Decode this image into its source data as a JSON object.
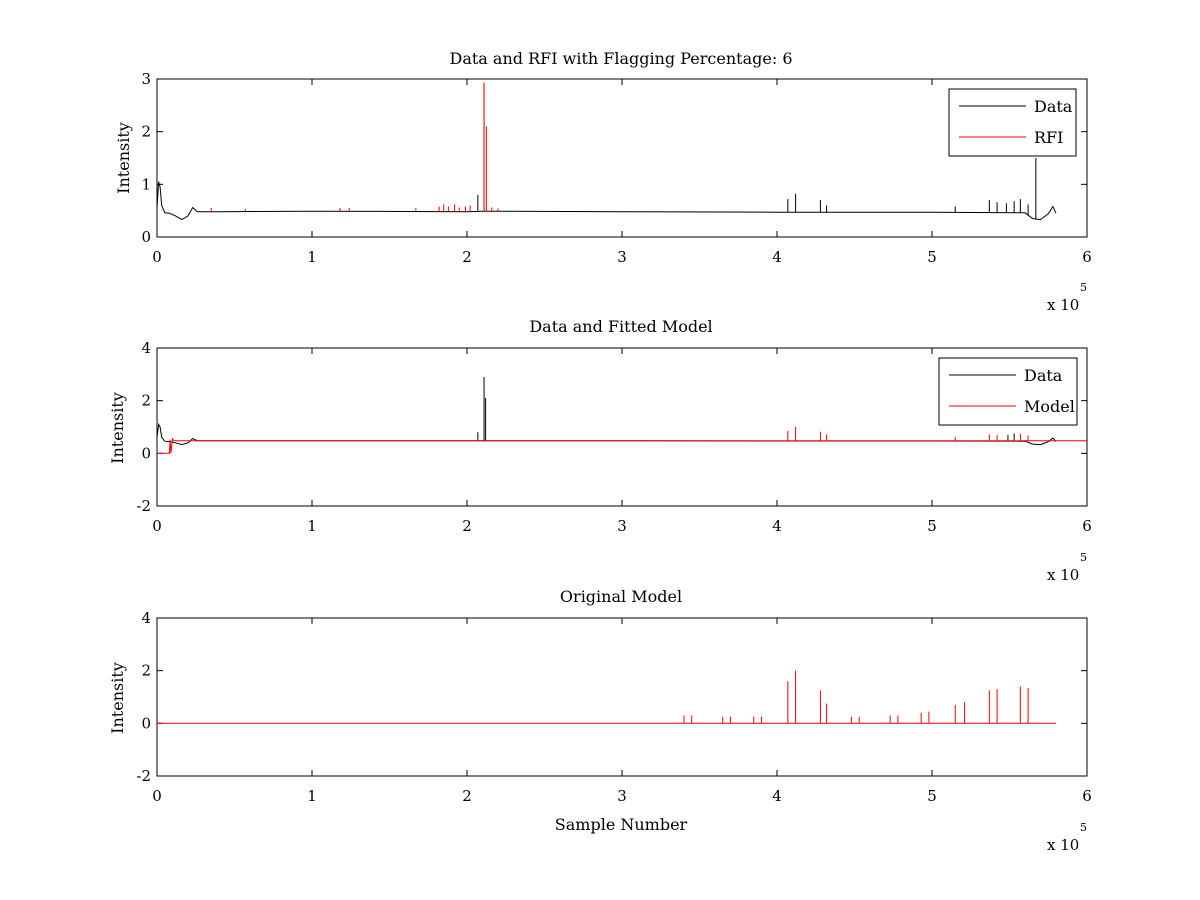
{
  "chart_data": [
    {
      "type": "line",
      "title": "Data and RFI with Flagging Percentage: 6",
      "xlabel": "",
      "ylabel": "Intensity",
      "xlim": [
        0,
        600000
      ],
      "ylim": [
        0,
        3
      ],
      "xticks": [
        "0",
        "1",
        "2",
        "3",
        "4",
        "5",
        "6"
      ],
      "yticks": [
        "0",
        "1",
        "2",
        "3"
      ],
      "x_multiplier": "x 10",
      "x_multiplier_exp": "5",
      "legend": {
        "position": "top-right",
        "entries": [
          "Data",
          "RFI"
        ]
      },
      "grid": false,
      "series": [
        {
          "name": "Data",
          "color": "#000000",
          "baseline": 0.48,
          "x": [
            0,
            1000,
            2000,
            3000,
            5000,
            8000,
            12000,
            16000,
            20000,
            23000,
            26000,
            40000,
            100000,
            200000,
            210000,
            300000,
            400000,
            500000,
            560000,
            565000,
            570000,
            575000,
            578000,
            580000
          ],
          "y": [
            0.55,
            1.05,
            0.95,
            0.6,
            0.46,
            0.45,
            0.4,
            0.33,
            0.4,
            0.56,
            0.48,
            0.48,
            0.49,
            0.48,
            0.49,
            0.48,
            0.47,
            0.47,
            0.46,
            0.35,
            0.33,
            0.44,
            0.58,
            0.45
          ],
          "spikes": [
            {
              "x": 207000,
              "y": 0.8
            },
            {
              "x": 211000,
              "y": 2.9
            },
            {
              "x": 407000,
              "y": 0.72
            },
            {
              "x": 412000,
              "y": 0.82
            },
            {
              "x": 428000,
              "y": 0.7
            },
            {
              "x": 432000,
              "y": 0.6
            },
            {
              "x": 515000,
              "y": 0.58
            },
            {
              "x": 537000,
              "y": 0.7
            },
            {
              "x": 542000,
              "y": 0.66
            },
            {
              "x": 548000,
              "y": 0.64
            },
            {
              "x": 553000,
              "y": 0.68
            },
            {
              "x": 557000,
              "y": 0.72
            },
            {
              "x": 562000,
              "y": 0.62
            },
            {
              "x": 567000,
              "y": 1.5
            }
          ]
        },
        {
          "name": "RFI",
          "color": "#ff0000",
          "spikes": [
            {
              "x": 35000,
              "y": 0.55
            },
            {
              "x": 57000,
              "y": 0.53
            },
            {
              "x": 118000,
              "y": 0.55
            },
            {
              "x": 124000,
              "y": 0.55
            },
            {
              "x": 167000,
              "y": 0.55
            },
            {
              "x": 182000,
              "y": 0.58
            },
            {
              "x": 185000,
              "y": 0.62
            },
            {
              "x": 188000,
              "y": 0.58
            },
            {
              "x": 192000,
              "y": 0.62
            },
            {
              "x": 195000,
              "y": 0.56
            },
            {
              "x": 199000,
              "y": 0.58
            },
            {
              "x": 202000,
              "y": 0.6
            },
            {
              "x": 211000,
              "y": 2.93
            },
            {
              "x": 212500,
              "y": 2.1
            },
            {
              "x": 216000,
              "y": 0.56
            },
            {
              "x": 220000,
              "y": 0.54
            }
          ]
        }
      ]
    },
    {
      "type": "line",
      "title": "Data and Fitted Model",
      "xlabel": "",
      "ylabel": "Intensity",
      "xlim": [
        0,
        600000
      ],
      "ylim": [
        -2,
        4
      ],
      "xticks": [
        "0",
        "1",
        "2",
        "3",
        "4",
        "5",
        "6"
      ],
      "yticks": [
        "-2",
        "0",
        "2",
        "4"
      ],
      "x_multiplier": "x 10",
      "x_multiplier_exp": "5",
      "legend": {
        "position": "top-right",
        "entries": [
          "Data",
          "Model"
        ]
      },
      "grid": false,
      "series": [
        {
          "name": "Data",
          "color": "#000000",
          "x": [
            0,
            1000,
            2000,
            3000,
            5000,
            8000,
            12000,
            16000,
            20000,
            23000,
            26000,
            40000,
            200000,
            300000,
            400000,
            500000,
            560000,
            565000,
            570000,
            575000,
            578000,
            580000
          ],
          "y": [
            0.6,
            1.1,
            1.0,
            0.6,
            0.46,
            0.45,
            0.4,
            0.33,
            0.4,
            0.56,
            0.48,
            0.48,
            0.48,
            0.48,
            0.47,
            0.47,
            0.46,
            0.35,
            0.33,
            0.44,
            0.58,
            0.45
          ],
          "spikes": [
            {
              "x": 207000,
              "y": 0.8
            },
            {
              "x": 211000,
              "y": 2.9
            },
            {
              "x": 212000,
              "y": 2.1
            },
            {
              "x": 549000,
              "y": 0.7
            },
            {
              "x": 553000,
              "y": 0.75
            }
          ]
        },
        {
          "name": "Model",
          "color": "#ff0000",
          "x": [
            0,
            8000,
            8500,
            9000,
            10000,
            11000,
            600000
          ],
          "y": [
            0.0,
            0.0,
            0.52,
            0.0,
            0.55,
            0.48,
            0.48
          ],
          "spikes": [
            {
              "x": 407000,
              "y": 0.85
            },
            {
              "x": 412000,
              "y": 1.0
            },
            {
              "x": 428000,
              "y": 0.82
            },
            {
              "x": 432000,
              "y": 0.72
            },
            {
              "x": 515000,
              "y": 0.62
            },
            {
              "x": 537000,
              "y": 0.72
            },
            {
              "x": 542000,
              "y": 0.7
            },
            {
              "x": 557000,
              "y": 0.75
            },
            {
              "x": 562000,
              "y": 0.68
            }
          ]
        }
      ]
    },
    {
      "type": "line",
      "title": "Original Model",
      "xlabel": "Sample Number",
      "ylabel": "Intensity",
      "xlim": [
        0,
        600000
      ],
      "ylim": [
        -2,
        4
      ],
      "xticks": [
        "0",
        "1",
        "2",
        "3",
        "4",
        "5",
        "6"
      ],
      "yticks": [
        "-2",
        "0",
        "2",
        "4"
      ],
      "x_multiplier": "x 10",
      "x_multiplier_exp": "5",
      "grid": false,
      "series": [
        {
          "color": "#ff0000",
          "x": [
            0,
            580000
          ],
          "y": [
            0,
            0
          ],
          "spikes": [
            {
              "x": 407000,
              "y": 1.6
            },
            {
              "x": 412000,
              "y": 2.0
            },
            {
              "x": 428000,
              "y": 1.25
            },
            {
              "x": 432000,
              "y": 0.75
            },
            {
              "x": 515000,
              "y": 0.7
            },
            {
              "x": 521000,
              "y": 0.8
            },
            {
              "x": 537000,
              "y": 1.25
            },
            {
              "x": 542000,
              "y": 1.3
            },
            {
              "x": 557000,
              "y": 1.4
            },
            {
              "x": 562000,
              "y": 1.35
            },
            {
              "x": 340000,
              "y": 0.3
            },
            {
              "x": 345000,
              "y": 0.3
            },
            {
              "x": 365000,
              "y": 0.25
            },
            {
              "x": 370000,
              "y": 0.25
            },
            {
              "x": 385000,
              "y": 0.25
            },
            {
              "x": 390000,
              "y": 0.25
            },
            {
              "x": 448000,
              "y": 0.25
            },
            {
              "x": 453000,
              "y": 0.25
            },
            {
              "x": 473000,
              "y": 0.3
            },
            {
              "x": 478000,
              "y": 0.3
            },
            {
              "x": 493000,
              "y": 0.4
            },
            {
              "x": 498000,
              "y": 0.45
            }
          ]
        }
      ]
    }
  ]
}
